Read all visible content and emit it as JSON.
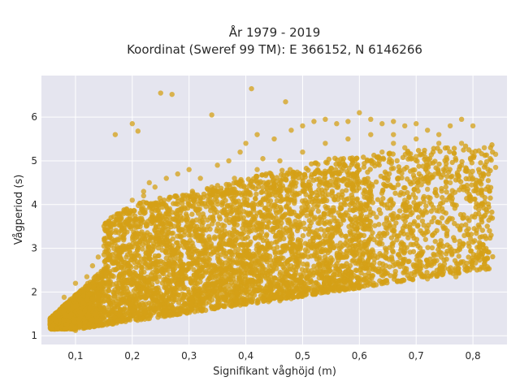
{
  "chart_data": {
    "type": "scatter",
    "title": "År 1979 - 2019",
    "subtitle": "Koordinat (Sweref 99 TM): E 366152, N 6146266",
    "xlabel": "Signifikant våghöjd (m)",
    "ylabel": "Vågperiod (s)",
    "xlim": [
      0.04,
      0.86
    ],
    "ylim": [
      0.8,
      6.95
    ],
    "xticks": [
      0.1,
      0.2,
      0.3,
      0.4,
      0.5,
      0.6,
      0.7,
      0.8
    ],
    "xtick_labels": [
      "0,1",
      "0,2",
      "0,3",
      "0,4",
      "0,5",
      "0,6",
      "0,7",
      "0,8"
    ],
    "yticks": [
      1,
      2,
      3,
      4,
      5,
      6
    ],
    "ytick_labels": [
      "1",
      "2",
      "3",
      "4",
      "5",
      "6"
    ],
    "grid": true,
    "legend": "none",
    "marker_color": "#d4a017",
    "background_color": "#e5e5ef",
    "series": [
      {
        "values_note_x_y_pairs": true,
        "points": [
          [
            0.06,
            1.42
          ],
          [
            0.07,
            1.45
          ],
          [
            0.08,
            1.38
          ],
          [
            0.09,
            1.5
          ],
          [
            0.1,
            1.32
          ],
          [
            0.1,
            1.55
          ],
          [
            0.11,
            1.25
          ],
          [
            0.12,
            1.6
          ],
          [
            0.13,
            1.7
          ],
          [
            0.14,
            1.65
          ],
          [
            0.08,
            1.88
          ],
          [
            0.1,
            2.2
          ],
          [
            0.12,
            2.35
          ],
          [
            0.13,
            2.6
          ],
          [
            0.14,
            2.8
          ],
          [
            0.15,
            3.05
          ],
          [
            0.16,
            3.3
          ],
          [
            0.17,
            3.55
          ],
          [
            0.17,
            5.6
          ],
          [
            0.18,
            3.7
          ],
          [
            0.19,
            3.9
          ],
          [
            0.2,
            4.1
          ],
          [
            0.2,
            5.85
          ],
          [
            0.21,
            5.68
          ],
          [
            0.22,
            4.3
          ],
          [
            0.23,
            4.5
          ],
          [
            0.24,
            4.4
          ],
          [
            0.25,
            6.55
          ],
          [
            0.27,
            6.52
          ],
          [
            0.26,
            4.6
          ],
          [
            0.28,
            4.7
          ],
          [
            0.3,
            4.8
          ],
          [
            0.32,
            4.6
          ],
          [
            0.34,
            6.05
          ],
          [
            0.35,
            4.9
          ],
          [
            0.37,
            5.0
          ],
          [
            0.39,
            5.2
          ],
          [
            0.4,
            5.4
          ],
          [
            0.41,
            6.65
          ],
          [
            0.42,
            5.6
          ],
          [
            0.43,
            5.05
          ],
          [
            0.45,
            5.5
          ],
          [
            0.47,
            6.35
          ],
          [
            0.48,
            5.7
          ],
          [
            0.5,
            5.8
          ],
          [
            0.52,
            5.9
          ],
          [
            0.54,
            5.95
          ],
          [
            0.56,
            5.85
          ],
          [
            0.58,
            5.9
          ],
          [
            0.6,
            6.1
          ],
          [
            0.62,
            5.95
          ],
          [
            0.64,
            5.85
          ],
          [
            0.66,
            5.9
          ],
          [
            0.68,
            5.8
          ],
          [
            0.7,
            5.85
          ],
          [
            0.72,
            5.7
          ],
          [
            0.74,
            5.6
          ],
          [
            0.76,
            5.8
          ],
          [
            0.78,
            5.95
          ],
          [
            0.8,
            5.8
          ],
          [
            0.82,
            5.3
          ],
          [
            0.84,
            5.15
          ],
          [
            0.84,
            4.85
          ],
          [
            0.8,
            4.6
          ],
          [
            0.78,
            4.4
          ],
          [
            0.76,
            4.2
          ],
          [
            0.74,
            3.85
          ],
          [
            0.72,
            4.35
          ],
          [
            0.7,
            3.9
          ],
          [
            0.68,
            4.1
          ],
          [
            0.66,
            3.4
          ],
          [
            0.64,
            3.3
          ],
          [
            0.62,
            2.9
          ],
          [
            0.6,
            2.7
          ],
          [
            0.58,
            2.4
          ],
          [
            0.56,
            2.25
          ],
          [
            0.55,
            2.1
          ],
          [
            0.54,
            2.0
          ],
          [
            0.52,
            1.95
          ],
          [
            0.5,
            1.9
          ],
          [
            0.48,
            1.85
          ],
          [
            0.46,
            1.8
          ],
          [
            0.44,
            1.78
          ],
          [
            0.42,
            1.75
          ],
          [
            0.4,
            1.72
          ],
          [
            0.38,
            1.7
          ],
          [
            0.36,
            1.68
          ],
          [
            0.34,
            1.66
          ],
          [
            0.32,
            1.64
          ],
          [
            0.3,
            1.62
          ],
          [
            0.28,
            1.6
          ],
          [
            0.26,
            1.58
          ],
          [
            0.24,
            1.56
          ],
          [
            0.22,
            1.54
          ],
          [
            0.2,
            1.52
          ],
          [
            0.18,
            1.5
          ],
          [
            0.16,
            1.45
          ],
          [
            0.15,
            1.4
          ],
          [
            0.14,
            1.3
          ],
          [
            0.12,
            1.22
          ],
          [
            0.1,
            1.12
          ],
          [
            0.72,
            2.3
          ],
          [
            0.77,
            2.35
          ],
          [
            0.75,
            2.55
          ],
          [
            0.7,
            2.55
          ],
          [
            0.68,
            2.75
          ],
          [
            0.66,
            2.6
          ],
          [
            0.64,
            3.1
          ],
          [
            0.62,
            3.6
          ],
          [
            0.6,
            3.9
          ],
          [
            0.58,
            3.75
          ],
          [
            0.56,
            3.5
          ],
          [
            0.54,
            3.2
          ],
          [
            0.52,
            3.0
          ],
          [
            0.5,
            2.8
          ],
          [
            0.48,
            2.6
          ],
          [
            0.46,
            2.4
          ],
          [
            0.44,
            2.3
          ],
          [
            0.42,
            2.1
          ],
          [
            0.4,
            2.0
          ],
          [
            0.38,
            2.05
          ],
          [
            0.36,
            2.2
          ],
          [
            0.34,
            2.4
          ],
          [
            0.32,
            2.6
          ],
          [
            0.3,
            2.8
          ],
          [
            0.28,
            3.0
          ],
          [
            0.26,
            3.2
          ],
          [
            0.24,
            3.4
          ],
          [
            0.22,
            3.6
          ],
          [
            0.2,
            3.8
          ],
          [
            0.18,
            3.4
          ],
          [
            0.16,
            2.8
          ],
          [
            0.15,
            2.4
          ],
          [
            0.14,
            2.1
          ],
          [
            0.13,
            1.9
          ],
          [
            0.12,
            1.8
          ],
          [
            0.11,
            2.0
          ],
          [
            0.46,
            3.2
          ],
          [
            0.48,
            3.5
          ],
          [
            0.5,
            3.8
          ],
          [
            0.52,
            4.0
          ],
          [
            0.54,
            4.2
          ],
          [
            0.56,
            4.4
          ],
          [
            0.58,
            4.6
          ],
          [
            0.6,
            4.8
          ],
          [
            0.62,
            5.0
          ],
          [
            0.64,
            5.2
          ],
          [
            0.66,
            5.4
          ],
          [
            0.68,
            5.3
          ],
          [
            0.7,
            5.1
          ],
          [
            0.72,
            4.9
          ],
          [
            0.74,
            4.7
          ],
          [
            0.76,
            4.5
          ],
          [
            0.78,
            4.9
          ],
          [
            0.8,
            5.1
          ],
          [
            0.44,
            4.0
          ],
          [
            0.42,
            3.8
          ],
          [
            0.4,
            3.6
          ],
          [
            0.38,
            3.4
          ],
          [
            0.36,
            3.2
          ],
          [
            0.34,
            3.0
          ],
          [
            0.32,
            3.2
          ],
          [
            0.3,
            3.4
          ],
          [
            0.28,
            3.6
          ],
          [
            0.26,
            3.8
          ],
          [
            0.24,
            4.0
          ],
          [
            0.22,
            4.2
          ],
          [
            0.3,
            4.2
          ],
          [
            0.34,
            4.4
          ],
          [
            0.38,
            4.6
          ],
          [
            0.42,
            4.8
          ],
          [
            0.46,
            5.0
          ],
          [
            0.5,
            5.2
          ],
          [
            0.54,
            5.4
          ],
          [
            0.58,
            5.5
          ],
          [
            0.62,
            5.6
          ],
          [
            0.66,
            5.6
          ],
          [
            0.7,
            5.5
          ],
          [
            0.74,
            5.4
          ],
          [
            0.78,
            5.4
          ]
        ]
      }
    ]
  }
}
